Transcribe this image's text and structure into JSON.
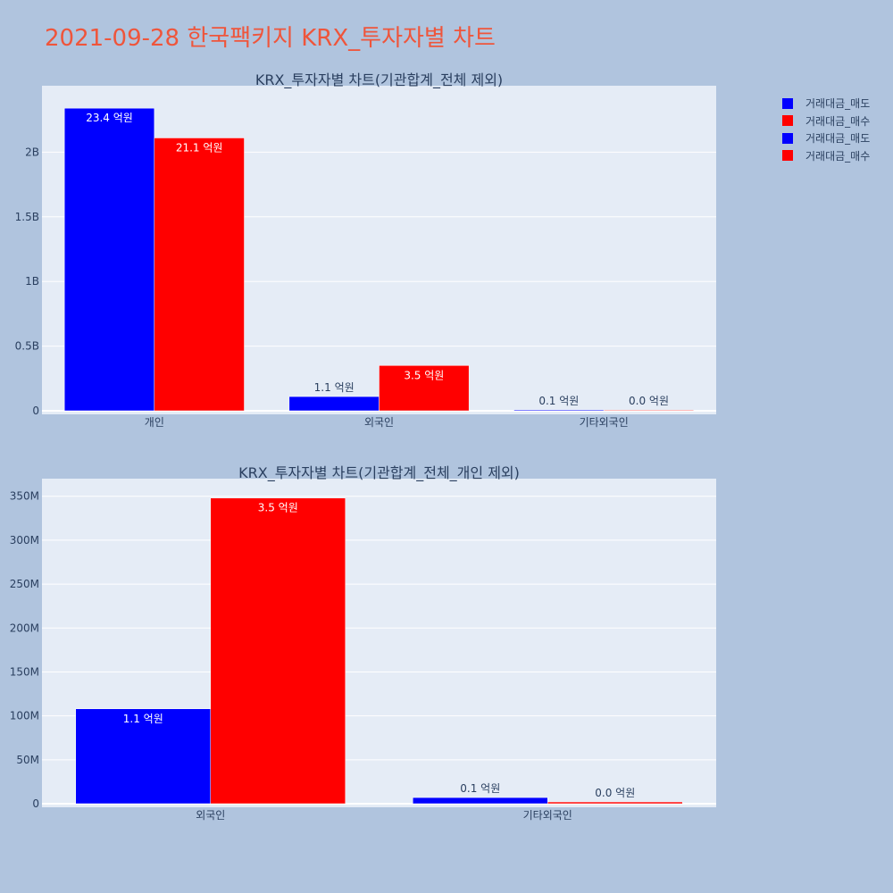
{
  "page": {
    "title": "2021-09-28 한국팩키지 KRX_투자자별 차트",
    "title_color": "#EF553B",
    "background": "#B0C4DE",
    "plot_background": "#E5ECF6",
    "text_color": "#2a3f5f"
  },
  "legend": {
    "position": "top-right",
    "items": [
      {
        "label": "거래대금_매도",
        "color": "#0000FF"
      },
      {
        "label": "거래대금_매수",
        "color": "#FF0000"
      },
      {
        "label": "거래대금_매도",
        "color": "#0000FF"
      },
      {
        "label": "거래대금_매수",
        "color": "#FF0000"
      }
    ]
  },
  "chart_data": [
    {
      "type": "bar",
      "title": "KRX_투자자별 차트(기관합계_전체 제외)",
      "categories": [
        "개인",
        "외국인",
        "기타외국인"
      ],
      "series": [
        {
          "name": "거래대금_매도",
          "color": "#0000FF",
          "values": [
            2340000000,
            110000000,
            7000000
          ],
          "labels": [
            "23.4 억원",
            "1.1 억원",
            "0.1 억원"
          ]
        },
        {
          "name": "거래대금_매수",
          "color": "#FF0000",
          "values": [
            2110000000,
            350000000,
            2000000
          ],
          "labels": [
            "21.1 억원",
            "3.5 억원",
            "0.0 억원"
          ]
        }
      ],
      "ylim": [
        0,
        2500000000
      ],
      "yticks": [
        0,
        500000000,
        1000000000,
        1500000000,
        2000000000
      ],
      "ytick_labels": [
        "0",
        "0.5B",
        "1B",
        "1.5B",
        "2B"
      ],
      "grid": true
    },
    {
      "type": "bar",
      "title": "KRX_투자자별 차트(기관합계_전체_개인 제외)",
      "categories": [
        "외국인",
        "기타외국인"
      ],
      "series": [
        {
          "name": "거래대금_매도",
          "color": "#0000FF",
          "values": [
            108000000,
            7000000
          ],
          "labels": [
            "1.1 억원",
            "0.1 억원"
          ]
        },
        {
          "name": "거래대금_매수",
          "color": "#FF0000",
          "values": [
            348000000,
            2000000
          ],
          "labels": [
            "3.5 억원",
            "0.0 억원"
          ]
        }
      ],
      "ylim": [
        0,
        368000000
      ],
      "yticks": [
        0,
        50000000,
        100000000,
        150000000,
        200000000,
        250000000,
        300000000,
        350000000
      ],
      "ytick_labels": [
        "0",
        "50M",
        "100M",
        "150M",
        "200M",
        "250M",
        "300M",
        "350M"
      ],
      "grid": true
    }
  ]
}
